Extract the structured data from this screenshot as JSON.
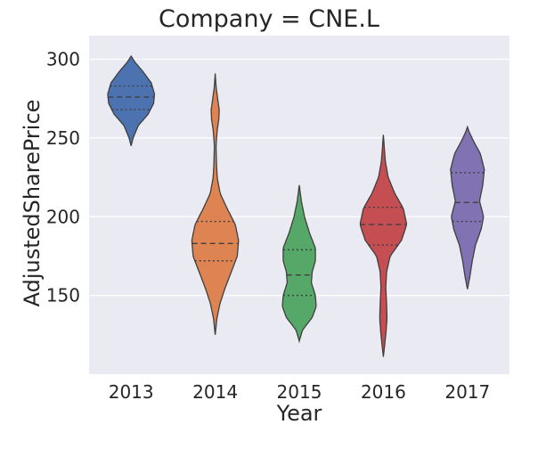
{
  "chart_data": {
    "type": "violin",
    "title": "Company = CNE.L",
    "xlabel": "Year",
    "ylabel": "AdjustedSharePrice",
    "categories": [
      "2013",
      "2014",
      "2015",
      "2016",
      "2017"
    ],
    "ylim": [
      100,
      315
    ],
    "yticks": [
      150,
      200,
      250,
      300
    ],
    "grid": true,
    "background": "#EAEAF2",
    "colors": [
      "#4C72B0",
      "#DD8452",
      "#55A868",
      "#C44E52",
      "#8172B3"
    ],
    "violins": [
      {
        "category": "2013",
        "quartiles": [
          268,
          276,
          283
        ],
        "profile": [
          [
            245,
            0.0
          ],
          [
            250,
            0.05
          ],
          [
            258,
            0.18
          ],
          [
            265,
            0.42
          ],
          [
            272,
            0.56
          ],
          [
            278,
            0.58
          ],
          [
            285,
            0.5
          ],
          [
            292,
            0.3
          ],
          [
            298,
            0.1
          ],
          [
            302,
            0.0
          ]
        ]
      },
      {
        "category": "2014",
        "quartiles": [
          172,
          183,
          197
        ],
        "profile": [
          [
            125,
            0.0
          ],
          [
            135,
            0.04
          ],
          [
            145,
            0.12
          ],
          [
            155,
            0.25
          ],
          [
            165,
            0.4
          ],
          [
            175,
            0.55
          ],
          [
            185,
            0.58
          ],
          [
            195,
            0.5
          ],
          [
            205,
            0.3
          ],
          [
            215,
            0.12
          ],
          [
            225,
            0.05
          ],
          [
            235,
            0.03
          ],
          [
            245,
            0.02
          ],
          [
            255,
            0.05
          ],
          [
            262,
            0.09
          ],
          [
            268,
            0.1
          ],
          [
            275,
            0.06
          ],
          [
            283,
            0.02
          ],
          [
            291,
            0.0
          ]
        ]
      },
      {
        "category": "2015",
        "quartiles": [
          150,
          163,
          179
        ],
        "profile": [
          [
            121,
            0.0
          ],
          [
            128,
            0.08
          ],
          [
            136,
            0.32
          ],
          [
            143,
            0.42
          ],
          [
            150,
            0.4
          ],
          [
            158,
            0.3
          ],
          [
            165,
            0.32
          ],
          [
            172,
            0.4
          ],
          [
            180,
            0.4
          ],
          [
            190,
            0.25
          ],
          [
            200,
            0.13
          ],
          [
            210,
            0.05
          ],
          [
            220,
            0.0
          ]
        ]
      },
      {
        "category": "2016",
        "quartiles": [
          182,
          195,
          206
        ],
        "profile": [
          [
            111,
            0.0
          ],
          [
            118,
            0.03
          ],
          [
            125,
            0.06
          ],
          [
            135,
            0.09
          ],
          [
            145,
            0.08
          ],
          [
            155,
            0.06
          ],
          [
            165,
            0.08
          ],
          [
            175,
            0.17
          ],
          [
            185,
            0.45
          ],
          [
            195,
            0.58
          ],
          [
            205,
            0.5
          ],
          [
            215,
            0.28
          ],
          [
            225,
            0.12
          ],
          [
            235,
            0.05
          ],
          [
            245,
            0.02
          ],
          [
            252,
            0.0
          ]
        ]
      },
      {
        "category": "2017",
        "quartiles": [
          197,
          209,
          228
        ],
        "profile": [
          [
            154,
            0.0
          ],
          [
            162,
            0.06
          ],
          [
            172,
            0.12
          ],
          [
            182,
            0.2
          ],
          [
            192,
            0.34
          ],
          [
            200,
            0.4
          ],
          [
            210,
            0.3
          ],
          [
            220,
            0.38
          ],
          [
            230,
            0.42
          ],
          [
            240,
            0.32
          ],
          [
            248,
            0.15
          ],
          [
            254,
            0.04
          ],
          [
            257,
            0.0
          ]
        ]
      }
    ]
  }
}
